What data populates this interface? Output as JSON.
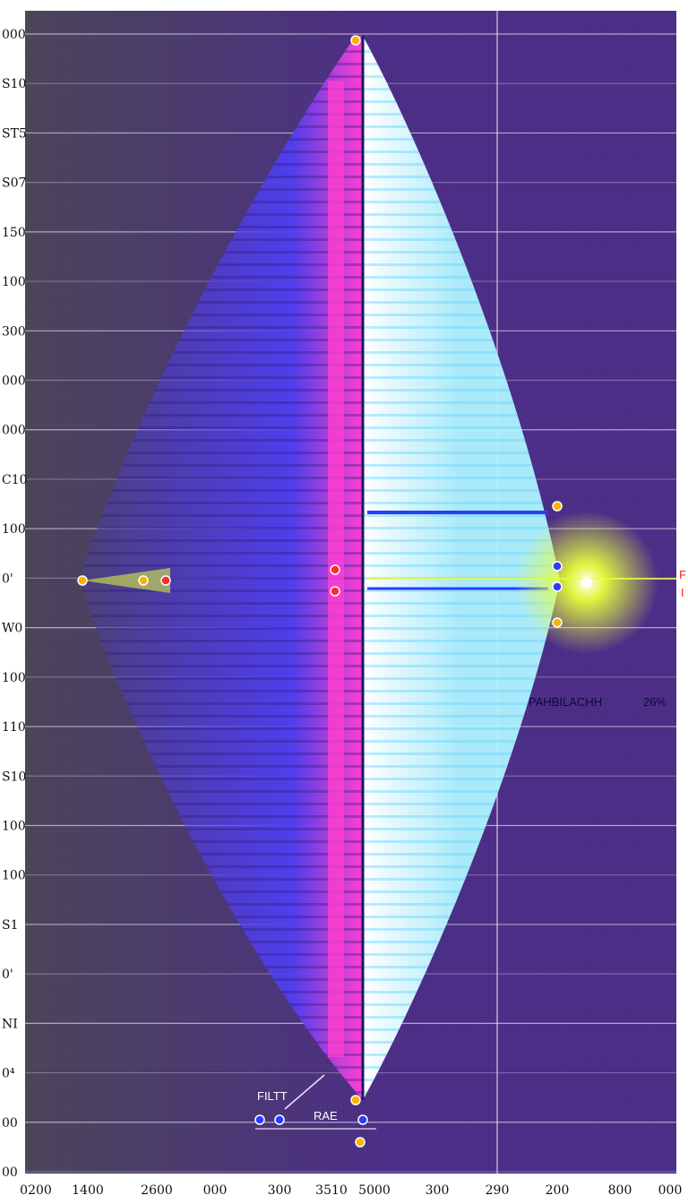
{
  "colors": {
    "background_left": "#4a4458",
    "background_right": "#4b2d86",
    "violet_fill": "#4f3ff0",
    "magenta_band": "#ff3fd0",
    "cyan_fill": "#aef3ff",
    "white_band": "#ffffff",
    "glow": "#e8ff3a",
    "marker_orange": "#ffb000",
    "marker_red": "#ff2a2a",
    "marker_blue": "#2a3cff",
    "label_red": "#ff2020"
  },
  "chart_data": {
    "type": "area",
    "title": "",
    "xlabel": "",
    "ylabel": "",
    "grid": true,
    "x_ticks": [
      "0200",
      "1400",
      "2600",
      "000",
      "300",
      "3510",
      "5000",
      "300",
      "290",
      "200",
      "800",
      "000"
    ],
    "y_ticks": [
      "000",
      "S10",
      "ST5",
      "S07",
      "150",
      "100",
      "300",
      "000",
      "000",
      "C10",
      "100",
      "0'",
      "W0",
      "100",
      "110",
      "S10",
      "100",
      "100",
      "S1",
      "0'",
      "NI",
      "0⁴",
      "00",
      "00"
    ],
    "shape": {
      "top_apex_x": "3510",
      "bottom_apex_x": "5000",
      "left_tip_y": "0'",
      "right_tip_y": "0'"
    },
    "annotations": [
      {
        "text": "PAHBILACHH",
        "value": "26%"
      },
      {
        "text": "FILTT"
      },
      {
        "text": "RAE"
      },
      {
        "text": "F"
      },
      {
        "text": "I"
      }
    ]
  }
}
